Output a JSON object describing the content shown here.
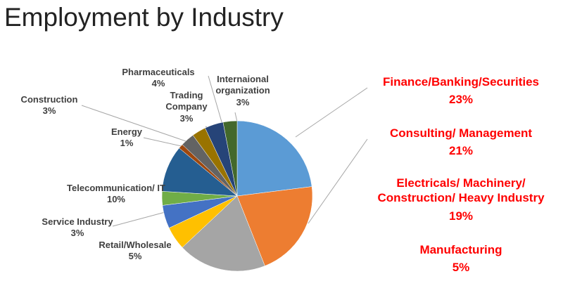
{
  "chart_data": {
    "type": "pie",
    "title": "Employment by Industry",
    "categories": [
      "Finance/Banking/Securities",
      "Consulting/ Management",
      "Electricals/ Machinery/ Construction/ Heavy Industry",
      "Manufacturing",
      "Retail/Wholesale",
      "Service Industry",
      "Telecommunication/ IT",
      "Energy",
      "Construction",
      "Trading Company",
      "Pharmaceuticals",
      "Internaional organization"
    ],
    "values": [
      23,
      21,
      19,
      5,
      5,
      3,
      10,
      1,
      3,
      3,
      4,
      3
    ],
    "value_labels": [
      "23%",
      "21%",
      "19%",
      "5%",
      "5%",
      "3%",
      "10%",
      "1%",
      "3%",
      "3%",
      "4%",
      "3%"
    ],
    "colors": [
      "#5b9bd5",
      "#ed7d31",
      "#a5a5a5",
      "#ffc000",
      "#4472c4",
      "#70ad47",
      "#255e91",
      "#9e480e",
      "#636363",
      "#997300",
      "#264478",
      "#43682b"
    ]
  }
}
